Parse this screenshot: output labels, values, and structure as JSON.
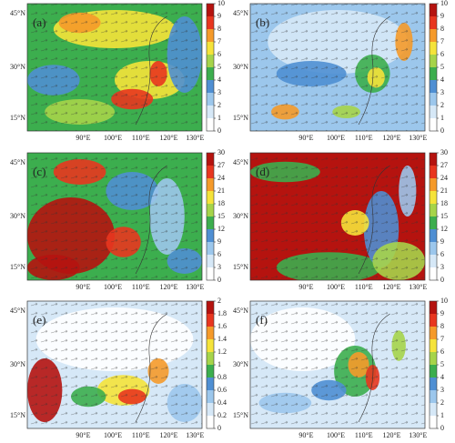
{
  "lat_labels": [
    "45°N",
    "30°N",
    "15°N"
  ],
  "lon_labels": [
    "90°E",
    "100°E",
    "110°E",
    "120°E",
    "130°E"
  ],
  "colormap": [
    "#ffffff",
    "#d6e8f7",
    "#9cc7ec",
    "#4f8fd3",
    "#3cae4e",
    "#a6d44a",
    "#f5e33a",
    "#f59a2a",
    "#e8361f",
    "#b5130f"
  ],
  "panels": [
    {
      "label": "(a)",
      "colorbar": {
        "lim": [
          0,
          10
        ],
        "ticks": [
          0,
          1,
          2,
          3,
          4,
          5,
          6,
          7,
          8,
          9,
          10
        ]
      }
    },
    {
      "label": "(b)",
      "colorbar": {
        "lim": [
          0,
          10
        ],
        "ticks": [
          0,
          1,
          2,
          3,
          4,
          5,
          6,
          7,
          8,
          9,
          10
        ]
      }
    },
    {
      "label": "(c)",
      "colorbar": {
        "lim": [
          0,
          30
        ],
        "ticks": [
          0,
          3,
          6,
          9,
          12,
          15,
          18,
          21,
          24,
          27,
          30
        ]
      }
    },
    {
      "label": "(d)",
      "colorbar": {
        "lim": [
          0,
          30
        ],
        "ticks": [
          0,
          3,
          6,
          9,
          12,
          15,
          18,
          21,
          24,
          27,
          30
        ]
      }
    },
    {
      "label": "(e)",
      "colorbar": {
        "lim": [
          0,
          2
        ],
        "ticks": [
          0,
          0.2,
          0.4,
          0.6,
          0.8,
          1,
          1.2,
          1.4,
          1.6,
          1.8,
          2
        ]
      }
    },
    {
      "label": "(f)",
      "colorbar": {
        "lim": [
          0,
          10
        ],
        "ticks": [
          0,
          1,
          2,
          3,
          4,
          5,
          6,
          7,
          8,
          9,
          10
        ]
      }
    }
  ]
}
